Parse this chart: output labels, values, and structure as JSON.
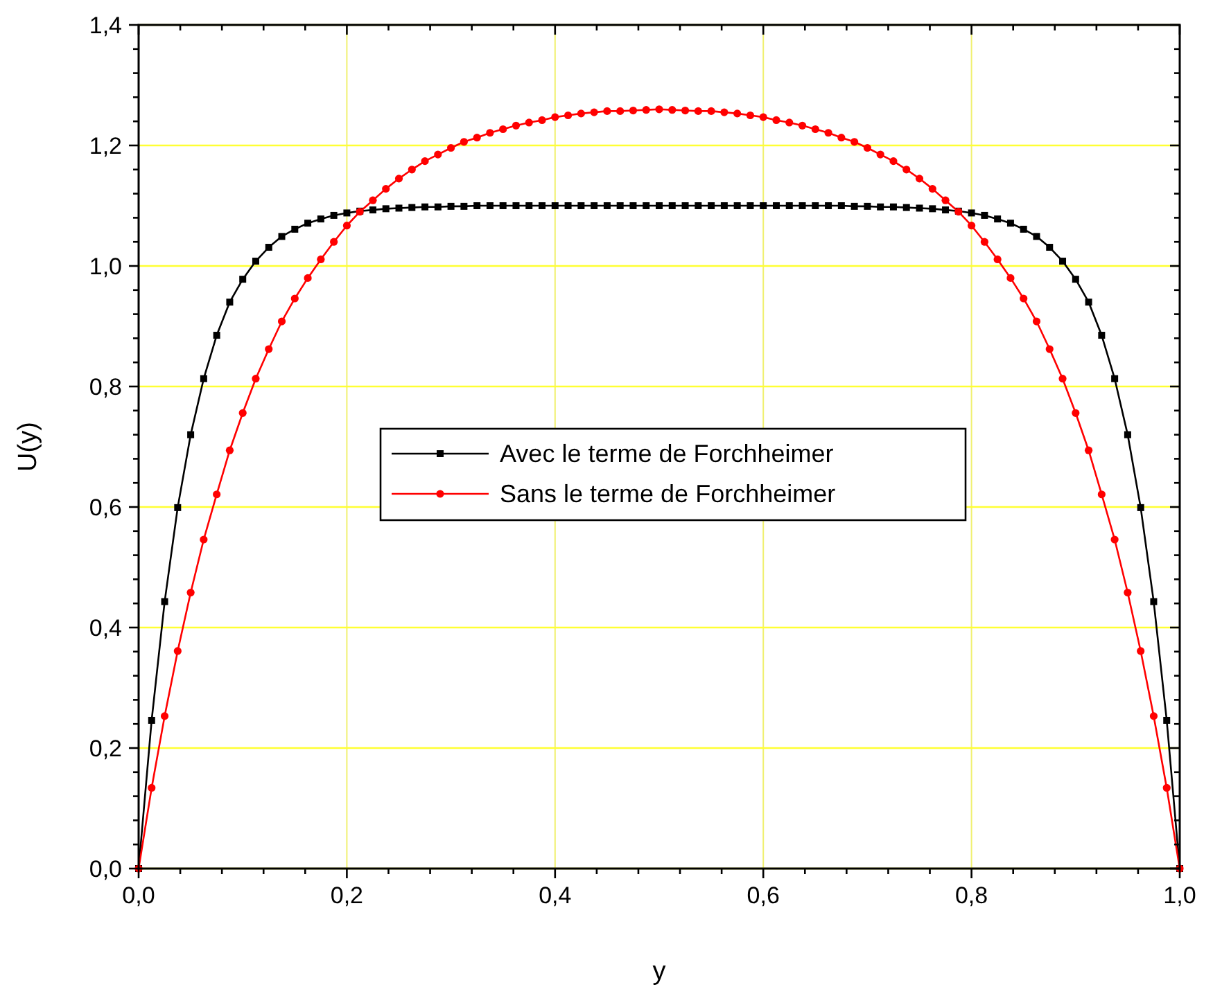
{
  "chart_data": {
    "type": "line",
    "xlabel": "y",
    "ylabel": "U(y)",
    "x": [
      0,
      0.0125,
      0.025,
      0.0375,
      0.05,
      0.0625,
      0.075,
      0.0875,
      0.1,
      0.1125,
      0.125,
      0.1375,
      0.15,
      0.1625,
      0.175,
      0.1875,
      0.2,
      0.2125,
      0.225,
      0.2375,
      0.25,
      0.2625,
      0.275,
      0.2875,
      0.3,
      0.3125,
      0.325,
      0.3375,
      0.35,
      0.3625,
      0.375,
      0.3875,
      0.4,
      0.4125,
      0.425,
      0.4375,
      0.45,
      0.4625,
      0.475,
      0.4875,
      0.5,
      0.5125,
      0.525,
      0.5375,
      0.55,
      0.5625,
      0.575,
      0.5875,
      0.6,
      0.6125,
      0.625,
      0.6375,
      0.65,
      0.6625,
      0.675,
      0.6875,
      0.7,
      0.7125,
      0.725,
      0.7375,
      0.75,
      0.7625,
      0.775,
      0.7875,
      0.8,
      0.8125,
      0.825,
      0.8375,
      0.85,
      0.8625,
      0.875,
      0.8875,
      0.9,
      0.9125,
      0.925,
      0.9375,
      0.95,
      0.9625,
      0.975,
      0.9875,
      1
    ],
    "series": [
      {
        "name": "Avec le terme de Forchheimer",
        "color": "#000000",
        "marker": "square",
        "values": [
          0,
          0.246,
          0.443,
          0.599,
          0.72,
          0.813,
          0.885,
          0.94,
          0.978,
          1.008,
          1.031,
          1.049,
          1.061,
          1.071,
          1.078,
          1.084,
          1.088,
          1.091,
          1.093,
          1.095,
          1.096,
          1.097,
          1.098,
          1.098,
          1.099,
          1.099,
          1.1,
          1.1,
          1.1,
          1.1,
          1.1,
          1.1,
          1.1,
          1.1,
          1.1,
          1.1,
          1.1,
          1.1,
          1.1,
          1.1,
          1.1,
          1.1,
          1.1,
          1.1,
          1.1,
          1.1,
          1.1,
          1.1,
          1.1,
          1.1,
          1.1,
          1.1,
          1.1,
          1.1,
          1.1,
          1.099,
          1.099,
          1.098,
          1.098,
          1.097,
          1.096,
          1.095,
          1.093,
          1.091,
          1.088,
          1.084,
          1.078,
          1.071,
          1.061,
          1.049,
          1.031,
          1.008,
          0.978,
          0.94,
          0.885,
          0.813,
          0.72,
          0.599,
          0.443,
          0.246,
          0
        ]
      },
      {
        "name": "Sans le terme de Forchheimer",
        "color": "#ff0000",
        "marker": "circle",
        "values": [
          0,
          0.134,
          0.253,
          0.361,
          0.458,
          0.546,
          0.621,
          0.694,
          0.756,
          0.813,
          0.862,
          0.908,
          0.946,
          0.98,
          1.011,
          1.04,
          1.067,
          1.09,
          1.109,
          1.128,
          1.145,
          1.16,
          1.174,
          1.185,
          1.196,
          1.206,
          1.213,
          1.221,
          1.227,
          1.233,
          1.238,
          1.242,
          1.247,
          1.25,
          1.253,
          1.255,
          1.257,
          1.257,
          1.258,
          1.259,
          1.26,
          1.259,
          1.258,
          1.257,
          1.257,
          1.255,
          1.253,
          1.25,
          1.247,
          1.242,
          1.238,
          1.233,
          1.227,
          1.221,
          1.213,
          1.206,
          1.196,
          1.185,
          1.174,
          1.16,
          1.145,
          1.128,
          1.109,
          1.09,
          1.067,
          1.04,
          1.011,
          0.98,
          0.946,
          0.908,
          0.862,
          0.813,
          0.756,
          0.694,
          0.621,
          0.546,
          0.458,
          0.361,
          0.253,
          0.134,
          0
        ]
      }
    ],
    "xlim": [
      0,
      1
    ],
    "ylim": [
      0,
      1.4
    ],
    "xticks": [
      {
        "value": 0,
        "label": "0,0"
      },
      {
        "value": 0.04,
        "label": null
      },
      {
        "value": 0.08,
        "label": null
      },
      {
        "value": 0.12,
        "label": null
      },
      {
        "value": 0.16,
        "label": null
      },
      {
        "value": 0.2,
        "label": "0,2"
      },
      {
        "value": 0.24,
        "label": null
      },
      {
        "value": 0.28,
        "label": null
      },
      {
        "value": 0.32,
        "label": null
      },
      {
        "value": 0.36,
        "label": null
      },
      {
        "value": 0.4,
        "label": "0,4"
      },
      {
        "value": 0.44,
        "label": null
      },
      {
        "value": 0.48,
        "label": null
      },
      {
        "value": 0.52,
        "label": null
      },
      {
        "value": 0.56,
        "label": null
      },
      {
        "value": 0.6,
        "label": "0,6"
      },
      {
        "value": 0.64,
        "label": null
      },
      {
        "value": 0.68,
        "label": null
      },
      {
        "value": 0.72,
        "label": null
      },
      {
        "value": 0.76,
        "label": null
      },
      {
        "value": 0.8,
        "label": "0,8"
      },
      {
        "value": 0.84,
        "label": null
      },
      {
        "value": 0.88,
        "label": null
      },
      {
        "value": 0.92,
        "label": null
      },
      {
        "value": 0.96,
        "label": null
      },
      {
        "value": 1,
        "label": "1,0"
      }
    ],
    "yticks": [
      {
        "value": 0,
        "label": "0,0"
      },
      {
        "value": 0.04,
        "label": null
      },
      {
        "value": 0.08,
        "label": null
      },
      {
        "value": 0.12,
        "label": null
      },
      {
        "value": 0.16,
        "label": null
      },
      {
        "value": 0.2,
        "label": "0,2"
      },
      {
        "value": 0.24,
        "label": null
      },
      {
        "value": 0.28,
        "label": null
      },
      {
        "value": 0.32,
        "label": null
      },
      {
        "value": 0.36,
        "label": null
      },
      {
        "value": 0.4,
        "label": "0,4"
      },
      {
        "value": 0.44,
        "label": null
      },
      {
        "value": 0.48,
        "label": null
      },
      {
        "value": 0.52,
        "label": null
      },
      {
        "value": 0.56,
        "label": null
      },
      {
        "value": 0.6,
        "label": "0,6"
      },
      {
        "value": 0.64,
        "label": null
      },
      {
        "value": 0.68,
        "label": null
      },
      {
        "value": 0.72,
        "label": null
      },
      {
        "value": 0.76,
        "label": null
      },
      {
        "value": 0.8,
        "label": "0,8"
      },
      {
        "value": 0.84,
        "label": null
      },
      {
        "value": 0.88,
        "label": null
      },
      {
        "value": 0.92,
        "label": null
      },
      {
        "value": 0.96,
        "label": null
      },
      {
        "value": 1,
        "label": "1,0"
      },
      {
        "value": 1.04,
        "label": null
      },
      {
        "value": 1.08,
        "label": null
      },
      {
        "value": 1.12,
        "label": null
      },
      {
        "value": 1.16,
        "label": null
      },
      {
        "value": 1.2,
        "label": "1,2"
      },
      {
        "value": 1.24,
        "label": null
      },
      {
        "value": 1.28,
        "label": null
      },
      {
        "value": 1.32,
        "label": null
      },
      {
        "value": 1.36,
        "label": null
      },
      {
        "value": 1.4,
        "label": "1,4"
      }
    ],
    "grid": true,
    "legend": "center",
    "line_style": "solid"
  }
}
